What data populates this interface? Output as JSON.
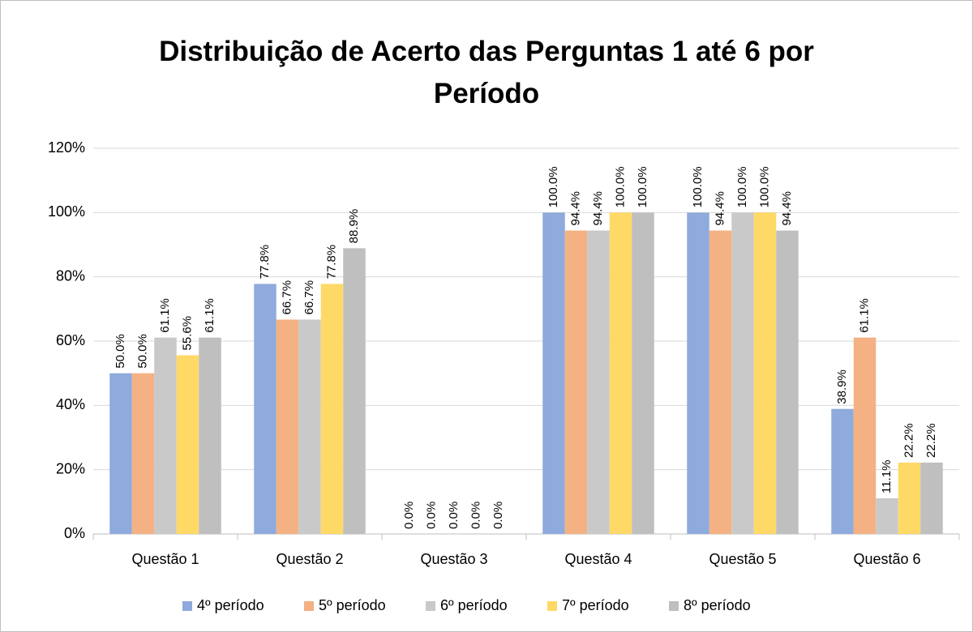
{
  "chart_data": {
    "type": "bar",
    "title": "Distribuição de Acerto das Perguntas 1 até 6 por Período",
    "categories": [
      "Questão 1",
      "Questão 2",
      "Questão 3",
      "Questão 4",
      "Questão 5",
      "Questão 6"
    ],
    "series": [
      {
        "name": "4º período",
        "color": "#8faadc",
        "values": [
          50,
          77.8,
          0,
          100,
          100,
          38.9
        ],
        "value_labels": [
          "50.0%",
          "77.8%",
          "0.0%",
          "100.0%",
          "100.0%",
          "38.9%"
        ]
      },
      {
        "name": "5º período",
        "color": "#f4b183",
        "values": [
          50,
          66.7,
          0,
          94.4,
          94.4,
          61.1
        ],
        "value_labels": [
          "50.0%",
          "66.7%",
          "0.0%",
          "94.4%",
          "94.4%",
          "61.1%"
        ]
      },
      {
        "name": "6º período",
        "color": "#c9c9c9",
        "values": [
          61.1,
          66.7,
          0,
          94.4,
          100,
          11.1
        ],
        "value_labels": [
          "61.1%",
          "66.7%",
          "0.0%",
          "94.4%",
          "100.0%",
          "11.1%"
        ]
      },
      {
        "name": "7º período",
        "color": "#ffd966",
        "values": [
          55.6,
          77.8,
          0,
          100,
          100,
          22.2
        ],
        "value_labels": [
          "55.6%",
          "77.8%",
          "0.0%",
          "100.0%",
          "100.0%",
          "22.2%"
        ]
      },
      {
        "name": "8º período",
        "color": "#bfbfbf",
        "values": [
          61.1,
          88.9,
          0,
          100,
          94.4,
          22.2
        ],
        "value_labels": [
          "61.1%",
          "88.9%",
          "0.0%",
          "100.0%",
          "94.4%",
          "22.2%"
        ]
      }
    ],
    "ylim": [
      0,
      120
    ],
    "yticks": [
      {
        "value": 0,
        "label": "0%"
      },
      {
        "value": 20,
        "label": "20%"
      },
      {
        "value": 40,
        "label": "40%"
      },
      {
        "value": 60,
        "label": "60%"
      },
      {
        "value": 80,
        "label": "80%"
      },
      {
        "value": 100,
        "label": "100%"
      },
      {
        "value": 120,
        "label": "120%"
      }
    ],
    "grid": true,
    "legend": "bottom"
  }
}
